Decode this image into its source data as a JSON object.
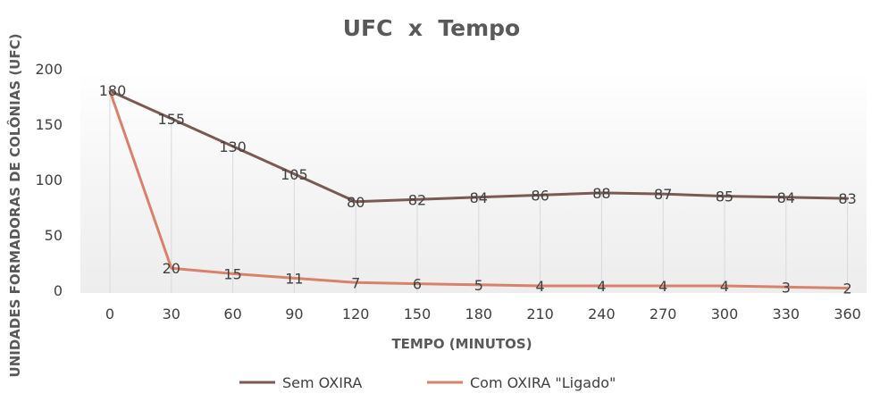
{
  "chart_data": {
    "type": "line",
    "title": "UFC  x  Tempo",
    "xlabel": "TEMPO (MINUTOS)",
    "ylabel": "UNIDADES FORMADORAS DE COLÔNIAS (UFC)",
    "categories": [
      "0",
      "30",
      "60",
      "90",
      "120",
      "150",
      "180",
      "210",
      "240",
      "270",
      "300",
      "330",
      "360"
    ],
    "ylim": [
      0,
      200
    ],
    "yticks": [
      "0",
      "50",
      "100",
      "150",
      "200"
    ],
    "grid": false,
    "drop_lines": true,
    "legend_position": "bottom",
    "series": [
      {
        "name": "Sem OXIRA",
        "color": "#7b5a53",
        "values": [
          180,
          155,
          130,
          105,
          80,
          82,
          84,
          86,
          88,
          87,
          85,
          84,
          83
        ]
      },
      {
        "name": "Com OXIRA \"Ligado\"",
        "color": "#d9826b",
        "values": [
          180,
          20,
          15,
          11,
          7,
          6,
          5,
          4,
          4,
          4,
          4,
          3,
          2
        ]
      }
    ]
  }
}
